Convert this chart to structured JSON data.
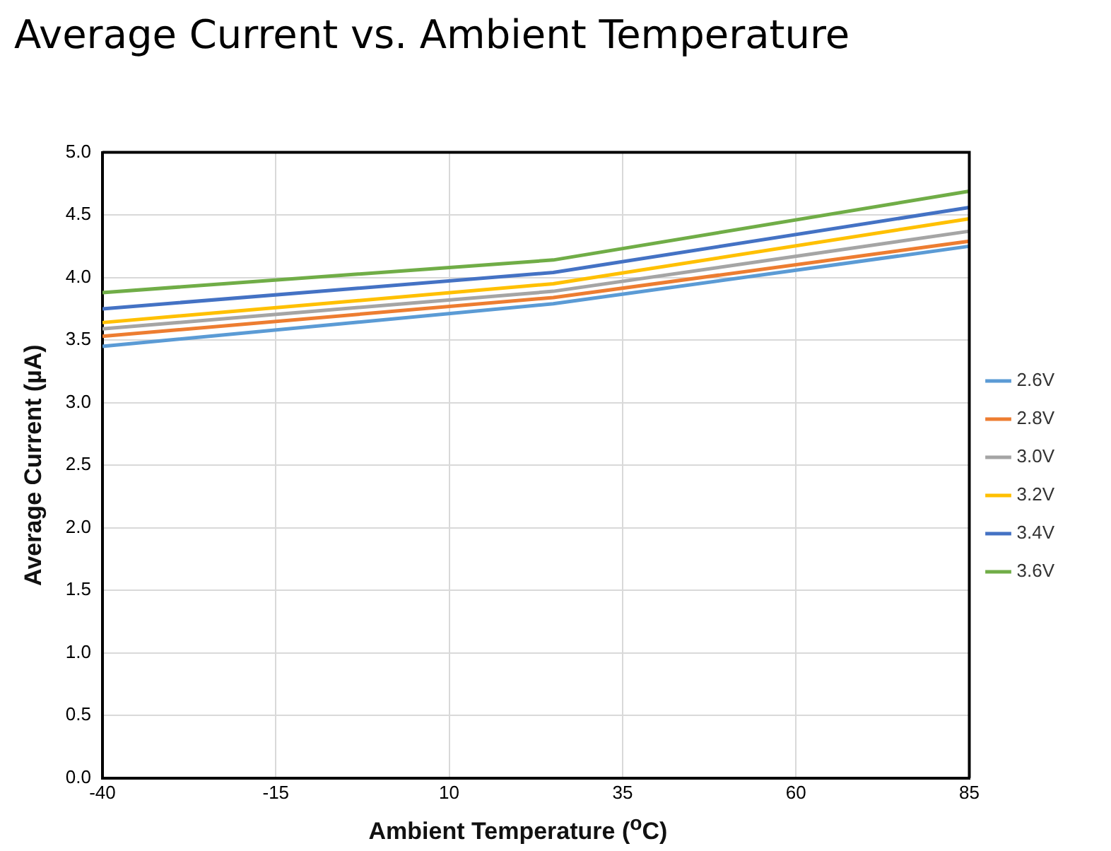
{
  "chart_data": {
    "type": "line",
    "title": "Average Current vs. Ambient Temperature",
    "xlabel": "Ambient Temperature ($^{o}$C)",
    "ylabel": "Average Current (µA)",
    "x": [
      -40,
      25,
      85
    ],
    "series": [
      {
        "name": "2.6V",
        "color": "#5b9bd5",
        "values": [
          3.45,
          3.79,
          4.25
        ]
      },
      {
        "name": "2.8V",
        "color": "#ed7d31",
        "values": [
          3.53,
          3.84,
          4.29
        ]
      },
      {
        "name": "3.0V",
        "color": "#a5a5a5",
        "values": [
          3.59,
          3.89,
          4.37
        ]
      },
      {
        "name": "3.2V",
        "color": "#ffc000",
        "values": [
          3.64,
          3.95,
          4.47
        ]
      },
      {
        "name": "3.4V",
        "color": "#4472c4",
        "values": [
          3.75,
          4.04,
          4.56
        ]
      },
      {
        "name": "3.6V",
        "color": "#70ad47",
        "values": [
          3.88,
          4.14,
          4.69
        ]
      }
    ],
    "xlim": [
      -40,
      85
    ],
    "xticks": [
      -40,
      -15,
      10,
      35,
      60,
      85
    ],
    "ylim": [
      0,
      5
    ],
    "yticks": [
      {
        "value": 0,
        "label": "0.0"
      },
      {
        "value": 0.5,
        "label": "0.5"
      },
      {
        "value": 1,
        "label": "1.0"
      },
      {
        "value": 1.5,
        "label": "1.5"
      },
      {
        "value": 2,
        "label": "2.0"
      },
      {
        "value": 2.5,
        "label": "2.5"
      },
      {
        "value": 3,
        "label": "3.0"
      },
      {
        "value": 3.5,
        "label": "3.5"
      },
      {
        "value": 4,
        "label": "4.0"
      },
      {
        "value": 4.5,
        "label": "4.5"
      },
      {
        "value": 5,
        "label": "5.0"
      }
    ],
    "grid": true,
    "legend": "right",
    "marker": "none",
    "line_style": "solid"
  }
}
